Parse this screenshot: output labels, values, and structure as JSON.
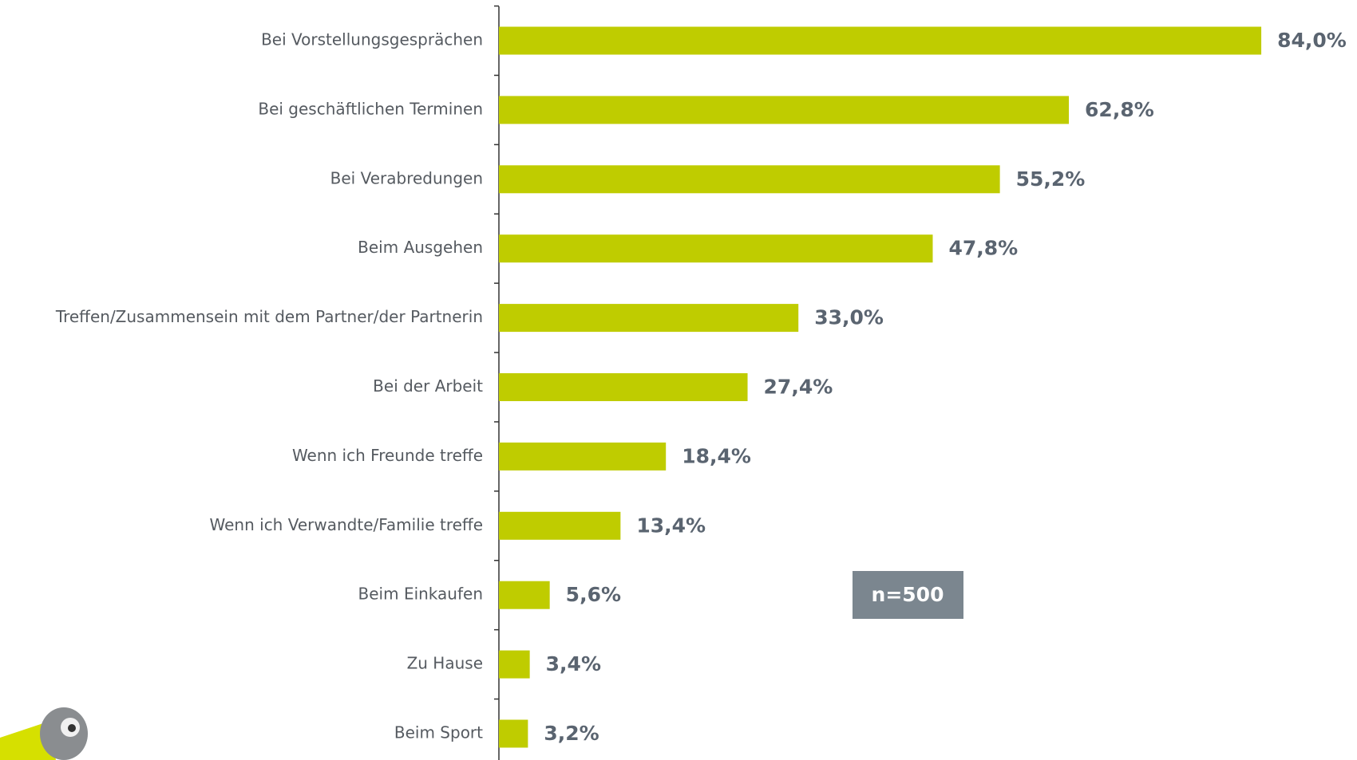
{
  "chart_data": {
    "type": "bar",
    "orientation": "horizontal",
    "categories": [
      "Bei Vorstellungsgesprächen",
      "Bei geschäftlichen Terminen",
      "Bei Verabredungen",
      "Beim Ausgehen",
      "Treffen/Zusammensein mit dem Partner/der Partnerin",
      "Bei der Arbeit",
      "Wenn ich Freunde treffe",
      "Wenn ich Verwandte/Familie treffe",
      "Beim Einkaufen",
      "Zu Hause",
      "Beim Sport"
    ],
    "values": [
      84.0,
      62.8,
      55.2,
      47.8,
      33.0,
      27.4,
      18.4,
      13.4,
      5.6,
      3.4,
      3.2
    ],
    "value_labels": [
      "84,0%",
      "62,8%",
      "55,2%",
      "47,8%",
      "33,0%",
      "27,4%",
      "18,4%",
      "13,4%",
      "5,6%",
      "3,4%",
      "3,2%"
    ],
    "color": "#bfcc00",
    "annotation": "n=500"
  }
}
